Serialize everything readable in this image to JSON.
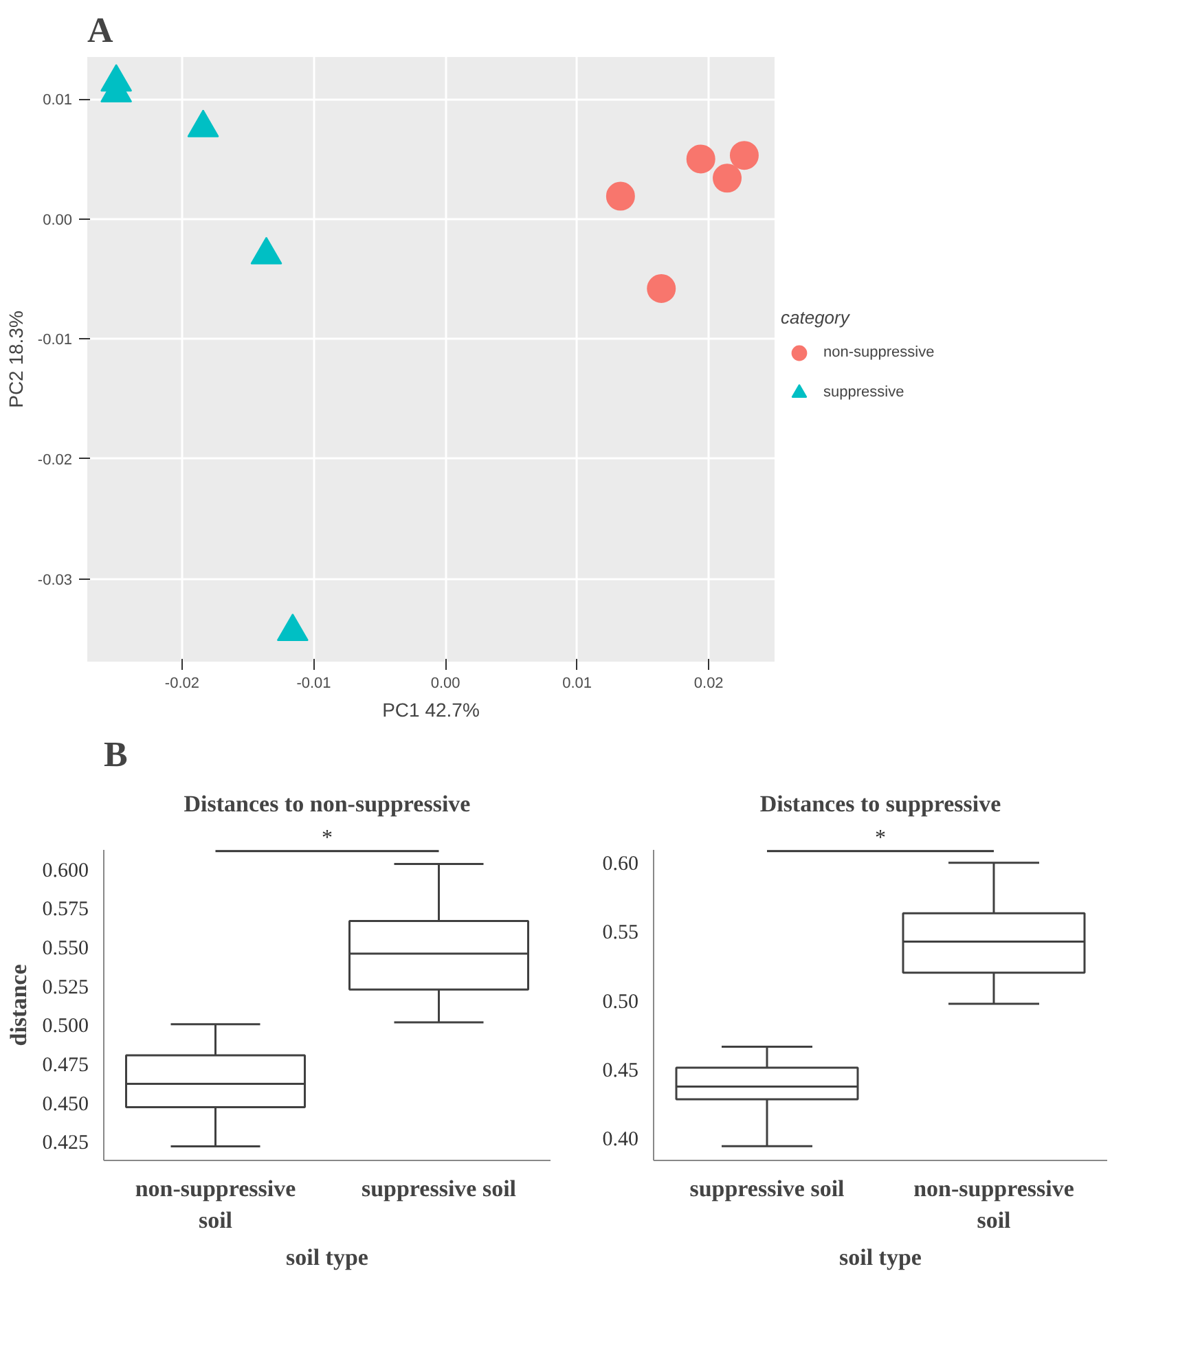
{
  "chart_data": [
    {
      "type": "scatter",
      "xlabel": "PC1 42.7%",
      "ylabel": "PC2 18.3%",
      "legend_title": "category",
      "legend": "right",
      "grid": true,
      "annotations": [
        "A"
      ],
      "xlim": [
        -0.0272,
        0.025
      ],
      "ylim": [
        -0.0369,
        0.0135
      ],
      "xticks": [
        {
          "value": -0.02,
          "label": "-0.02"
        },
        {
          "value": -0.01,
          "label": "-0.01"
        },
        {
          "value": 0,
          "label": "0.00"
        },
        {
          "value": 0.01,
          "label": "0.01"
        },
        {
          "value": 0.02,
          "label": "0.02"
        }
      ],
      "yticks": [
        {
          "value": -0.03,
          "label": "-0.03"
        },
        {
          "value": -0.02,
          "label": "-0.02"
        },
        {
          "value": -0.01,
          "label": "-0.01"
        },
        {
          "value": 0,
          "label": "0.00"
        },
        {
          "value": 0.01,
          "label": "0.01"
        }
      ],
      "series": [
        {
          "name": "non-suppressive",
          "color": "#f8766d",
          "marker": "circle",
          "x": [
            0.0133,
            0.0194,
            0.0227,
            0.0214,
            0.0164
          ],
          "values": [
            0.0019,
            0.005,
            0.0053,
            0.0034,
            -0.0058
          ]
        },
        {
          "name": "suppressive",
          "color": "#00bfc4",
          "marker": "triangle",
          "x": [
            -0.025,
            -0.025,
            -0.0184,
            -0.0136,
            -0.0116
          ],
          "values": [
            0.0114,
            0.0105,
            0.0076,
            -0.003,
            -0.0344
          ]
        }
      ]
    },
    {
      "type": "box",
      "title": "Distances to non-suppressive",
      "xlabel": "soil type",
      "ylabel": "distance",
      "grid": false,
      "color": "#404040",
      "annotations": [
        "B",
        "*"
      ],
      "categories": [
        "non-suppressive soil",
        "suppressive soil"
      ],
      "ylim": [
        0.4133,
        0.6126
      ],
      "yticks": [
        {
          "value": 0.425,
          "label": "0.425"
        },
        {
          "value": 0.45,
          "label": "0.450"
        },
        {
          "value": 0.475,
          "label": "0.475"
        },
        {
          "value": 0.5,
          "label": "0.500"
        },
        {
          "value": 0.525,
          "label": "0.525"
        },
        {
          "value": 0.55,
          "label": "0.550"
        },
        {
          "value": 0.575,
          "label": "0.575"
        },
        {
          "value": 0.6,
          "label": "0.600"
        }
      ],
      "boxes": [
        {
          "low": 0.4223,
          "q1": 0.4475,
          "median": 0.4625,
          "q3": 0.4808,
          "high": 0.5007
        },
        {
          "low": 0.5019,
          "q1": 0.523,
          "median": 0.546,
          "q3": 0.567,
          "high": 0.6036
        }
      ]
    },
    {
      "type": "box",
      "title": "Distances to suppressive",
      "xlabel": "soil type",
      "grid": false,
      "color": "#404040",
      "annotations": [
        "*"
      ],
      "categories": [
        "suppressive soil",
        "non-suppressive soil"
      ],
      "ylim": [
        0.3842,
        0.6094
      ],
      "yticks": [
        {
          "value": 0.4,
          "label": "0.40"
        },
        {
          "value": 0.45,
          "label": "0.45"
        },
        {
          "value": 0.5,
          "label": "0.50"
        },
        {
          "value": 0.55,
          "label": "0.55"
        },
        {
          "value": 0.6,
          "label": "0.60"
        }
      ],
      "boxes": [
        {
          "low": 0.3946,
          "q1": 0.4286,
          "median": 0.4377,
          "q3": 0.4515,
          "high": 0.4666
        },
        {
          "low": 0.4978,
          "q1": 0.5203,
          "median": 0.5429,
          "q3": 0.5634,
          "high": 0.6
        }
      ]
    }
  ]
}
